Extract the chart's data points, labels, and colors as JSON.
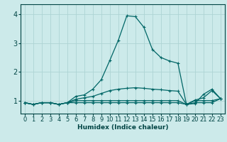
{
  "xlabel": "Humidex (Indice chaleur)",
  "background_color": "#cceaea",
  "grid_color": "#add4d4",
  "line_color": "#006666",
  "x_ticks": [
    0,
    1,
    2,
    3,
    4,
    5,
    6,
    7,
    8,
    9,
    10,
    11,
    12,
    13,
    14,
    15,
    16,
    17,
    18,
    19,
    20,
    21,
    22,
    23
  ],
  "y_ticks": [
    1,
    2,
    3,
    4
  ],
  "ylim": [
    0.55,
    4.35
  ],
  "xlim": [
    -0.5,
    23.5
  ],
  "series": [
    [
      0.93,
      0.87,
      0.93,
      0.93,
      0.87,
      0.93,
      1.15,
      1.2,
      1.4,
      1.73,
      2.4,
      3.1,
      3.95,
      3.92,
      3.55,
      2.78,
      2.5,
      2.38,
      2.3,
      0.87,
      0.9,
      1.22,
      1.4,
      1.07
    ],
    [
      0.93,
      0.87,
      0.93,
      0.93,
      0.87,
      0.93,
      1.05,
      1.1,
      1.15,
      1.25,
      1.35,
      1.4,
      1.43,
      1.45,
      1.43,
      1.4,
      1.38,
      1.35,
      1.33,
      0.87,
      1.02,
      1.1,
      1.35,
      1.07
    ],
    [
      0.93,
      0.87,
      0.93,
      0.93,
      0.87,
      0.93,
      1.0,
      1.0,
      1.0,
      1.0,
      1.0,
      1.0,
      1.0,
      1.0,
      1.0,
      1.0,
      1.0,
      1.0,
      1.0,
      0.87,
      1.0,
      1.0,
      1.0,
      1.07
    ],
    [
      0.93,
      0.87,
      0.93,
      0.93,
      0.87,
      0.93,
      0.93,
      0.93,
      0.93,
      0.93,
      0.93,
      0.93,
      0.93,
      0.93,
      0.93,
      0.93,
      0.93,
      0.93,
      0.93,
      0.87,
      0.93,
      0.93,
      0.93,
      1.07
    ]
  ],
  "tick_fontsize": 6,
  "xlabel_fontsize": 6.5,
  "tick_color": "#004444",
  "spine_color": "#004444"
}
